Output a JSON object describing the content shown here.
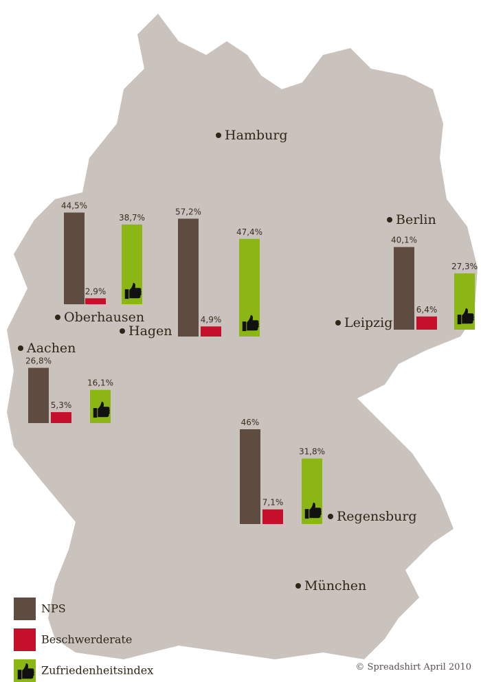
{
  "chart_data": {
    "type": "bar",
    "categories": [
      "Oberhausen",
      "Hagen",
      "Leipzig",
      "Aachen",
      "Regensburg"
    ],
    "series": [
      {
        "name": "NPS",
        "color": "#5e4c40",
        "values": [
          44.5,
          57.2,
          40.1,
          26.8,
          46
        ],
        "value_labels": [
          "44,5%",
          "57,2%",
          "40,1%",
          "26,8%",
          "46%"
        ]
      },
      {
        "name": "Beschwerderate",
        "color": "#c4102a",
        "values": [
          2.9,
          4.9,
          6.4,
          5.3,
          7.1
        ],
        "value_labels": [
          "2,9%",
          "4,9%",
          "6,4%",
          "5,3%",
          "7,1%"
        ]
      },
      {
        "name": "Zufriedenheitsindex",
        "color": "#8cb613",
        "values": [
          38.7,
          47.4,
          27.3,
          16.1,
          31.8
        ],
        "value_labels": [
          "38,7%",
          "47,4%",
          "27,3%",
          "16,1%",
          "31,8%"
        ]
      }
    ]
  },
  "other_cities": [
    "Hamburg",
    "Berlin",
    "München"
  ],
  "credit": "© Spreadshirt April 2010"
}
